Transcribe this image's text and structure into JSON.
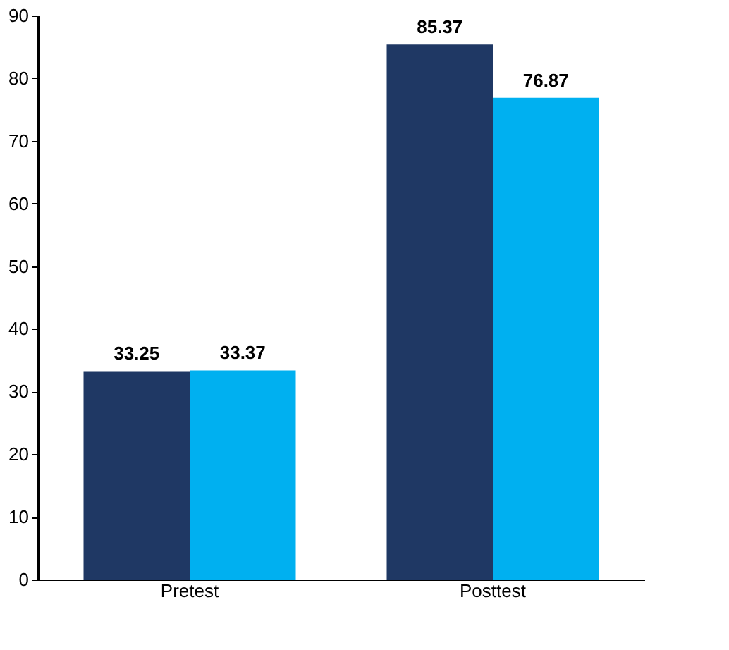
{
  "chart_data": {
    "type": "bar",
    "categories": [
      "Pretest",
      "Posttest"
    ],
    "series": [
      {
        "color": "#1f3864",
        "values": [
          33.25,
          85.37
        ]
      },
      {
        "color": "#00b0f0",
        "values": [
          33.37,
          76.87
        ]
      }
    ],
    "ylim": [
      0,
      90
    ],
    "yticks": [
      0,
      10,
      20,
      30,
      40,
      50,
      60,
      70,
      80,
      90
    ],
    "grid": false,
    "data_labels": true
  }
}
